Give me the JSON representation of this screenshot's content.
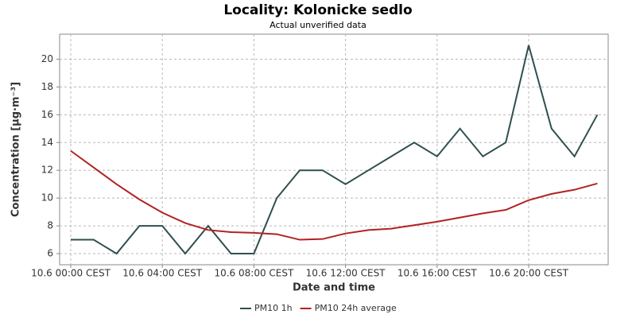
{
  "chart_data": {
    "type": "line",
    "title": "Locality: Kolonicke sedlo",
    "subtitle": "Actual unverified data",
    "x_label": "Date and time",
    "y_label": "Concentration [µg·m⁻³]",
    "categories": [
      "10.6 00:00 CEST",
      null,
      null,
      null,
      "10.6 04:00 CEST",
      null,
      null,
      null,
      "10.6 08:00 CEST",
      null,
      null,
      null,
      "10.6 12:00 CEST",
      null,
      null,
      null,
      "10.6 16:00 CEST",
      null,
      null,
      null,
      "10.6 20:00 CEST",
      null,
      null,
      null
    ],
    "series": [
      {
        "name": "PM10 1h",
        "color": "#2f4f4f",
        "values": [
          7,
          7,
          6,
          8,
          8,
          6,
          8,
          6,
          6,
          10,
          12,
          12,
          11,
          12,
          13,
          14,
          13,
          15,
          13,
          14,
          21,
          15,
          13,
          16
        ]
      },
      {
        "name": "PM10 24h average",
        "color": "#b22222",
        "values": [
          13.4,
          12.2,
          11.0,
          9.9,
          8.95,
          8.2,
          7.7,
          7.55,
          7.5,
          7.4,
          7.0,
          7.05,
          7.45,
          7.7,
          7.8,
          8.05,
          8.3,
          8.6,
          8.9,
          9.15,
          9.85,
          10.3,
          10.6,
          11.05
        ]
      }
    ],
    "ylim": [
      5.2,
      21.8
    ],
    "yticks": [
      6,
      8,
      10,
      12,
      14,
      16,
      18,
      20
    ],
    "grid": true
  }
}
